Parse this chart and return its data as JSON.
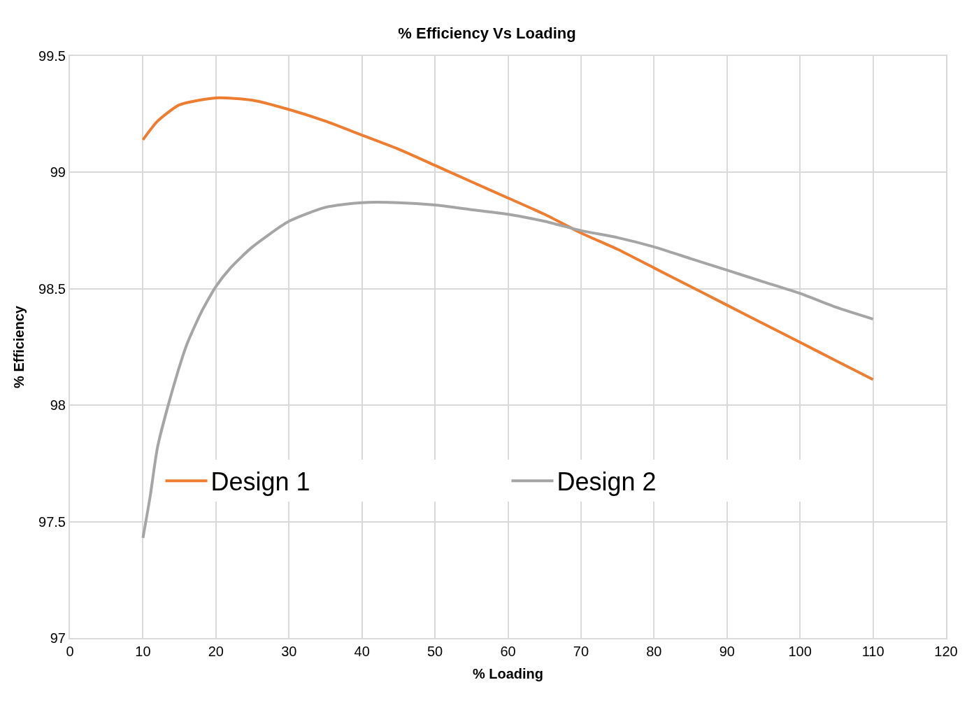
{
  "chart_data": {
    "type": "line",
    "title": "% Efficiency Vs Loading",
    "xlabel": "% Loading",
    "ylabel": "% Efficiency",
    "xlim": [
      0,
      120
    ],
    "xticks": [
      0,
      10,
      20,
      30,
      40,
      50,
      60,
      70,
      80,
      90,
      100,
      110,
      120
    ],
    "ylim": [
      97,
      99.5
    ],
    "yticks": [
      97,
      97.5,
      98,
      98.5,
      99,
      99.5
    ],
    "grid": true,
    "legend": "bottom",
    "marker": "none",
    "line_style": "solid",
    "series": [
      {
        "name": "Design 1",
        "color": "#ed7d31",
        "x": [
          10,
          12,
          15,
          20,
          25,
          30,
          35,
          40,
          45,
          50,
          55,
          60,
          65,
          70,
          75,
          80,
          85,
          90,
          95,
          100,
          105,
          110
        ],
        "values": [
          99.14,
          99.22,
          99.29,
          99.32,
          99.31,
          99.27,
          99.22,
          99.16,
          99.1,
          99.03,
          98.96,
          98.89,
          98.82,
          98.74,
          98.67,
          98.59,
          98.51,
          98.43,
          98.35,
          98.27,
          98.19,
          98.11
        ]
      },
      {
        "name": "Design 2",
        "color": "#a5a5a5",
        "x": [
          10,
          11,
          12,
          14,
          16,
          18,
          20,
          22,
          25,
          30,
          35,
          40,
          45,
          50,
          55,
          60,
          65,
          70,
          75,
          80,
          85,
          90,
          95,
          100,
          105,
          110
        ],
        "values": [
          97.43,
          97.61,
          97.82,
          98.06,
          98.26,
          98.4,
          98.51,
          98.59,
          98.68,
          98.79,
          98.85,
          98.87,
          98.87,
          98.86,
          98.84,
          98.82,
          98.79,
          98.75,
          98.72,
          98.68,
          98.63,
          98.58,
          98.53,
          98.48,
          98.42,
          98.37
        ]
      }
    ]
  }
}
